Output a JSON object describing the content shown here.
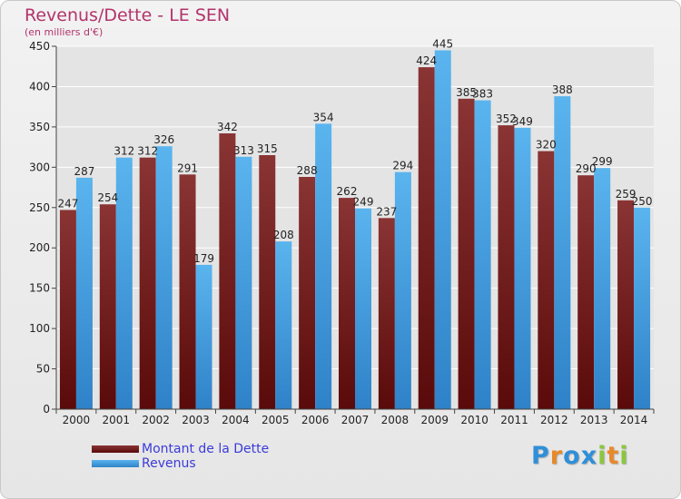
{
  "header": {
    "title": "Revenus/Dette - LE SEN",
    "subtitle": "(en milliers d'€)"
  },
  "chart_data": {
    "type": "bar",
    "title": "Revenus/Dette - LE SEN",
    "subtitle": "(en milliers d'€)",
    "ylim": [
      0,
      450
    ],
    "yticks": [
      0,
      50,
      100,
      150,
      200,
      250,
      300,
      350,
      400,
      450
    ],
    "grid": true,
    "legend_position": "bottom-left",
    "categories": [
      "2000",
      "2001",
      "2002",
      "2003",
      "2004",
      "2005",
      "2006",
      "2007",
      "2008",
      "2009",
      "2010",
      "2011",
      "2012",
      "2013",
      "2014"
    ],
    "series": [
      {
        "name": "Montant de la Dette",
        "color": "#7a1f1f",
        "values": [
          247,
          254,
          312,
          291,
          342,
          315,
          288,
          262,
          237,
          424,
          385,
          352,
          320,
          290,
          259
        ]
      },
      {
        "name": "Revenus",
        "color": "#4aa8e8",
        "values": [
          287,
          312,
          326,
          179,
          313,
          208,
          354,
          249,
          294,
          445,
          383,
          349,
          388,
          299,
          250
        ]
      }
    ]
  },
  "branding": {
    "letters": [
      {
        "ch": "P",
        "color": "#2f8fd8"
      },
      {
        "ch": "r",
        "color": "#e8892a"
      },
      {
        "ch": "o",
        "color": "#2f8fd8"
      },
      {
        "ch": "x",
        "color": "#2f8fd8"
      },
      {
        "ch": "i",
        "color": "#8cc63f"
      },
      {
        "ch": "t",
        "color": "#e8892a"
      },
      {
        "ch": "i",
        "color": "#8cc63f"
      }
    ]
  }
}
